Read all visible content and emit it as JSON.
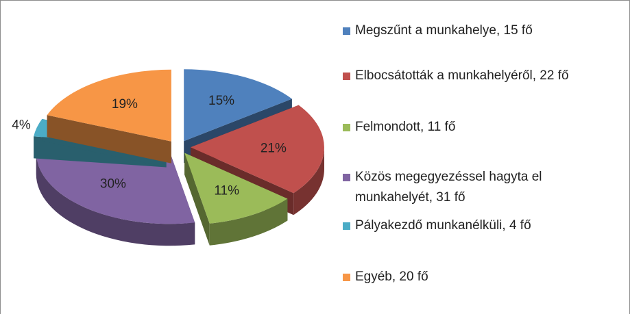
{
  "chart_data": {
    "type": "pie",
    "categories": [
      "Megszűnt a munkahelye, 15 fő",
      "Elbocsátották a munkahelyéről, 22 fő",
      "Felmondott, 11 fő",
      "Közös megegyezéssel hagyta el munkahelyét, 31 fő",
      "Pályakezdő munkanélküli, 4 fő",
      "Egyéb, 20 fő"
    ],
    "values": [
      15,
      21,
      11,
      30,
      4,
      19
    ],
    "value_labels": [
      "15%",
      "21%",
      "11%",
      "30%",
      "4%",
      "19%"
    ],
    "colors": [
      "#4f81bd",
      "#c0504d",
      "#9bbb59",
      "#8064a2",
      "#4bacc6",
      "#f79646"
    ],
    "legend": "right"
  }
}
